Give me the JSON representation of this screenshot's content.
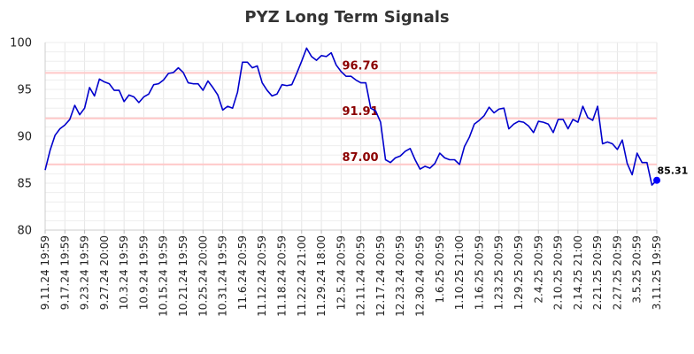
{
  "chart_data": {
    "type": "line",
    "title": "PYZ Long Term Signals",
    "xlabel": "",
    "ylabel": "",
    "ylim": [
      80,
      100
    ],
    "yticks": [
      80,
      85,
      90,
      95,
      100
    ],
    "grid": true,
    "x_tick_labels": [
      "9.11.24 19:59",
      "9.17.24 19:59",
      "9.23.24 19:59",
      "9.27.24 20:00",
      "10.3.24 19:59",
      "10.9.24 19:59",
      "10.15.24 19:59",
      "10.21.24 19:59",
      "10.25.24 20:00",
      "10.31.24 19:59",
      "11.6.24 20:59",
      "11.12.24 20:59",
      "11.18.24 20:59",
      "11.22.24 21:00",
      "11.29.24 18:00",
      "12.5.24 20:59",
      "12.11.24 20:59",
      "12.17.24 20:59",
      "12.23.24 20:59",
      "12.30.24 20:59",
      "1.6.25 20:59",
      "1.10.25 21:00",
      "1.16.25 20:59",
      "1.23.25 20:59",
      "1.29.25 20:59",
      "2.4.25 20:59",
      "2.10.25 20:59",
      "2.14.25 21:00",
      "2.21.25 20:59",
      "2.27.25 20:59",
      "3.5.25 20:59",
      "3.11.25 19:59"
    ],
    "series": [
      {
        "color": "#0000cc",
        "values": [
          86.4,
          88.5,
          90.1,
          90.8,
          91.2,
          91.8,
          93.3,
          92.3,
          93.0,
          95.2,
          94.3,
          96.1,
          95.8,
          95.6,
          94.9,
          94.9,
          93.7,
          94.4,
          94.2,
          93.6,
          94.2,
          94.5,
          95.5,
          95.6,
          96.0,
          96.7,
          96.8,
          97.3,
          96.8,
          95.7,
          95.6,
          95.6,
          94.9,
          95.9,
          95.2,
          94.4,
          92.8,
          93.2,
          93.0,
          94.7,
          97.9,
          97.9,
          97.3,
          97.5,
          95.7,
          94.9,
          94.3,
          94.5,
          95.5,
          95.4,
          95.5,
          96.7,
          98.0,
          99.4,
          98.5,
          98.1,
          98.6,
          98.5,
          98.9,
          97.6,
          96.9,
          96.4,
          96.4,
          96.0,
          95.7,
          95.7,
          93.0,
          92.7,
          91.5,
          87.5,
          87.2,
          87.7,
          87.9,
          88.4,
          88.7,
          87.5,
          86.5,
          86.8,
          86.6,
          87.1,
          88.2,
          87.7,
          87.5,
          87.5,
          87.0,
          88.9,
          89.9,
          91.3,
          91.7,
          92.2,
          93.1,
          92.5,
          92.9,
          93.0,
          90.8,
          91.3,
          91.6,
          91.5,
          91.1,
          90.4,
          91.6,
          91.5,
          91.3,
          90.4,
          91.8,
          91.8,
          90.8,
          91.8,
          91.5,
          93.2,
          92.0,
          91.7,
          93.2,
          89.2,
          89.4,
          89.2,
          88.6,
          89.6,
          87.1,
          85.9,
          88.2,
          87.2,
          87.2,
          84.8,
          85.31
        ]
      }
    ],
    "signals": [
      {
        "value": 96.76,
        "label": "96.76",
        "color": "#ffc8c8",
        "label_color": "#8b0000"
      },
      {
        "value": 91.91,
        "label": "91.91",
        "color": "#ffc8c8",
        "label_color": "#8b0000"
      },
      {
        "value": 87.0,
        "label": "87.00",
        "color": "#ffc8c8",
        "label_color": "#8b0000"
      }
    ],
    "last_point": {
      "value": 85.31,
      "label": "85.31",
      "color": "#0000ff"
    }
  }
}
